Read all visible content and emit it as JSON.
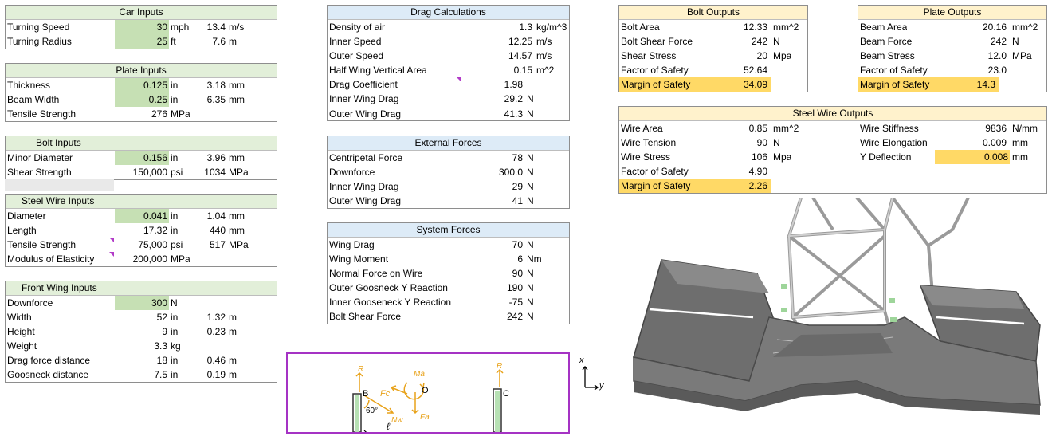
{
  "car_inputs": {
    "title": "Car Inputs",
    "rows": [
      {
        "label": "Turning Speed",
        "value": "30",
        "unit": "mph",
        "value2": "13.4",
        "unit2": "m/s"
      },
      {
        "label": "Turning Radius",
        "value": "25",
        "unit": "ft",
        "value2": "7.6",
        "unit2": "m"
      }
    ]
  },
  "plate_inputs": {
    "title": "Plate Inputs",
    "rows": [
      {
        "label": "Thickness",
        "value": "0.125",
        "unit": "in",
        "value2": "3.18",
        "unit2": "mm"
      },
      {
        "label": "Beam Width",
        "value": "0.25",
        "unit": "in",
        "value2": "6.35",
        "unit2": "mm"
      },
      {
        "label": "Tensile Strength",
        "value": "276",
        "unit": "MPa",
        "value2": "",
        "unit2": ""
      }
    ]
  },
  "bolt_inputs": {
    "title": "Bolt Inputs",
    "rows": [
      {
        "label": "Minor Diameter",
        "value": "0.156",
        "unit": "in",
        "value2": "3.96",
        "unit2": "mm"
      },
      {
        "label": "Shear Strength",
        "value": "150,000",
        "unit": "psi",
        "value2": "1034",
        "unit2": "MPa"
      }
    ]
  },
  "steel_wire_inputs": {
    "title": "Steel Wire Inputs",
    "rows": [
      {
        "label": "Diameter",
        "value": "0.041",
        "unit": "in",
        "value2": "1.04",
        "unit2": "mm"
      },
      {
        "label": "Length",
        "value": "17.32",
        "unit": "in",
        "value2": "440",
        "unit2": "mm"
      },
      {
        "label": "Tensile Strength",
        "value": "75,000",
        "unit": "psi",
        "value2": "517",
        "unit2": "MPa"
      },
      {
        "label": "Modulus of Elasticity",
        "value": "200,000",
        "unit": "MPa",
        "value2": "",
        "unit2": ""
      }
    ]
  },
  "front_wing_inputs": {
    "title": "Front Wing Inputs",
    "rows": [
      {
        "label": "Downforce",
        "value": "300",
        "unit": "N",
        "value2": "",
        "unit2": ""
      },
      {
        "label": "Width",
        "value": "52",
        "unit": "in",
        "value2": "1.32",
        "unit2": "m"
      },
      {
        "label": "Height",
        "value": "9",
        "unit": "in",
        "value2": "0.23",
        "unit2": "m"
      },
      {
        "label": "Weight",
        "value": "3.3",
        "unit": "kg",
        "value2": "",
        "unit2": ""
      },
      {
        "label": "Drag force distance",
        "value": "18",
        "unit": "in",
        "value2": "0.46",
        "unit2": "m"
      },
      {
        "label": "Goosneck distance",
        "value": "7.5",
        "unit": "in",
        "value2": "0.19",
        "unit2": "m"
      }
    ]
  },
  "drag_calculations": {
    "title": "Drag Calculations",
    "rows": [
      {
        "label": "Density of air",
        "value": "1.3",
        "unit": "kg/m^3"
      },
      {
        "label": "Inner Speed",
        "value": "12.25",
        "unit": "m/s"
      },
      {
        "label": "Outer Speed",
        "value": "14.57",
        "unit": "m/s"
      },
      {
        "label": "Half Wing Vertical Area",
        "value": "0.15",
        "unit": "m^2"
      },
      {
        "label": "Drag Coefficient",
        "value": "1.98",
        "unit": ""
      },
      {
        "label": "Inner Wing Drag",
        "value": "29.2",
        "unit": "N"
      },
      {
        "label": "Outer Wing Drag",
        "value": "41.3",
        "unit": "N"
      }
    ]
  },
  "external_forces": {
    "title": "External Forces",
    "rows": [
      {
        "label": "Centripetal Force",
        "value": "78",
        "unit": "N"
      },
      {
        "label": "Downforce",
        "value": "300.0",
        "unit": "N"
      },
      {
        "label": "Inner Wing Drag",
        "value": "29",
        "unit": "N"
      },
      {
        "label": "Outer Wing Drag",
        "value": "41",
        "unit": "N"
      }
    ]
  },
  "system_forces": {
    "title": "System Forces",
    "rows": [
      {
        "label": "Wing Drag",
        "value": "70",
        "unit": "N"
      },
      {
        "label": "Wing Moment",
        "value": "6",
        "unit": "Nm"
      },
      {
        "label": "Normal Force on Wire",
        "value": "90",
        "unit": "N"
      },
      {
        "label": "Outer Goosneck Y Reaction",
        "value": "190",
        "unit": "N"
      },
      {
        "label": "Inner Gooseneck Y Reaction",
        "value": "-75",
        "unit": "N"
      },
      {
        "label": "Bolt Shear Force",
        "value": "242",
        "unit": "N"
      }
    ]
  },
  "bolt_outputs": {
    "title": "Bolt Outputs",
    "rows": [
      {
        "label": "Bolt Area",
        "value": "12.33",
        "unit": "mm^2"
      },
      {
        "label": "Bolt Shear Force",
        "value": "242",
        "unit": "N"
      },
      {
        "label": "Shear Stress",
        "value": "20",
        "unit": "Mpa"
      },
      {
        "label": "Factor of Safety",
        "value": "52.64",
        "unit": ""
      },
      {
        "label": "Margin of Safety",
        "value": "34.09",
        "unit": ""
      }
    ]
  },
  "plate_outputs": {
    "title": "Plate Outputs",
    "rows": [
      {
        "label": "Beam Area",
        "value": "20.16",
        "unit": "mm^2"
      },
      {
        "label": "Beam Force",
        "value": "242",
        "unit": "N"
      },
      {
        "label": "Beam Stress",
        "value": "12.0",
        "unit": "MPa"
      },
      {
        "label": "Factor of Safety",
        "value": "23.0",
        "unit": ""
      },
      {
        "label": "Margin of Safety",
        "value": "14.3",
        "unit": ""
      }
    ]
  },
  "steel_wire_outputs": {
    "title": "Steel Wire Outputs",
    "left": [
      {
        "label": "Wire Area",
        "value": "0.85",
        "unit": "mm^2"
      },
      {
        "label": "Wire Tension",
        "value": "90",
        "unit": "N"
      },
      {
        "label": "Wire Stress",
        "value": "106",
        "unit": "Mpa"
      },
      {
        "label": "Factor of Safety",
        "value": "4.90",
        "unit": ""
      },
      {
        "label": "Margin of Safety",
        "value": "2.26",
        "unit": ""
      }
    ],
    "right": [
      {
        "label": "Wire Stiffness",
        "value": "9836",
        "unit": "N/mm"
      },
      {
        "label": "Wire Elongation",
        "value": "0.009",
        "unit": "mm"
      },
      {
        "label": "Y Deflection",
        "value": "0.008",
        "unit": "mm"
      }
    ]
  },
  "sketch": {
    "label_b": "B",
    "label_o": "O",
    "label_c": "C",
    "label_fc": "Fc",
    "label_angle": "60°",
    "label_l": "ℓ",
    "label_ma": "Ma",
    "label_nw": "Nw",
    "label_fa": "Fa",
    "label_rb": "R",
    "label_rc": "R",
    "axis_x": "x",
    "axis_y": "y"
  },
  "colors": {
    "input_green": "#c6e0b4",
    "output_yellow": "#ffd966",
    "sketch_orange": "#e8a21a",
    "diagram_border": "#a533c4"
  }
}
